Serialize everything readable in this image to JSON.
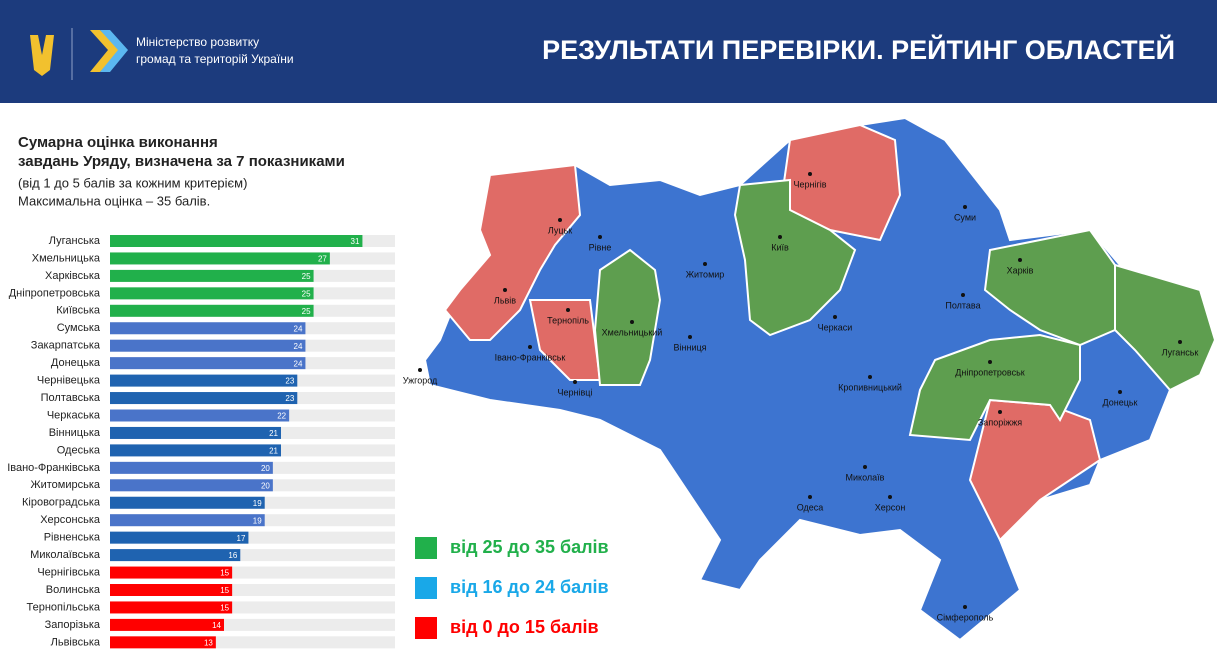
{
  "header": {
    "ministry": [
      "Міністерство розвитку",
      "громад та територій України"
    ],
    "title": "РЕЗУЛЬТАТИ ПЕРЕВІРКИ. РЕЙТИНГ ОБЛАСТЕЙ"
  },
  "chart_data": {
    "type": "bar",
    "orientation": "horizontal",
    "title": [
      "Сумарна оцінка виконання",
      "завдань Уряду, визначена за 7 показниками"
    ],
    "subtitle": [
      "(від 1 до 5 балів за кожним критерієм)",
      "Максимальна оцінка – 35 балів."
    ],
    "categories": [
      "Луганська",
      "Хмельницька",
      "Харківська",
      "Дніпропетровська",
      "Київська",
      "Сумська",
      "Закарпатська",
      "Донецька",
      "Чернівецька",
      "Полтавська",
      "Черкаська",
      "Вінницька",
      "Одеська",
      "Івано-Франківська",
      "Житомирська",
      "Кіровоградська",
      "Херсонська",
      "Рівненська",
      "Миколаївська",
      "Чернігівська",
      "Волинська",
      "Тернопільська",
      "Запорізька",
      "Львівська"
    ],
    "values": [
      31,
      27,
      25,
      25,
      25,
      24,
      24,
      24,
      23,
      23,
      22,
      21,
      21,
      20,
      20,
      19,
      19,
      17,
      16,
      15,
      15,
      15,
      14,
      13
    ],
    "colors": [
      "#21b04b",
      "#21b04b",
      "#21b04b",
      "#21b04b",
      "#21b04b",
      "#4a74c9",
      "#4a74c9",
      "#4a74c9",
      "#1f63b0",
      "#1f63b0",
      "#4a74c9",
      "#1f63b0",
      "#1f63b0",
      "#4a74c9",
      "#4a74c9",
      "#1f63b0",
      "#4a74c9",
      "#1f63b0",
      "#1f63b0",
      "#ff0000",
      "#ff0000",
      "#ff0000",
      "#ff0000",
      "#ff0000"
    ],
    "xlim": [
      0,
      35
    ],
    "legend": [
      {
        "label": "від 25 до 35 балів",
        "color": "#21b04b"
      },
      {
        "label": "від 16 до 24 балів",
        "color": "#19a8e8"
      },
      {
        "label": "від 0 до 15 балів",
        "color": "#ff0000"
      }
    ]
  },
  "map": {
    "labels": [
      "Луцьк",
      "Рівне",
      "Житомир",
      "Київ",
      "Чернігів",
      "Суми",
      "Харків",
      "Луганськ",
      "Львів",
      "Тернопіль",
      "Хмельницький",
      "Вінниця",
      "Черкаси",
      "Полтава",
      "Дніпропетровськ",
      "Донецьк",
      "Запоріжжя",
      "Кропивницький",
      "Ужгород",
      "Івано-Франківськ",
      "Чернівці",
      "Одеса",
      "Миколаїв",
      "Херсон",
      "Сімферополь"
    ]
  }
}
